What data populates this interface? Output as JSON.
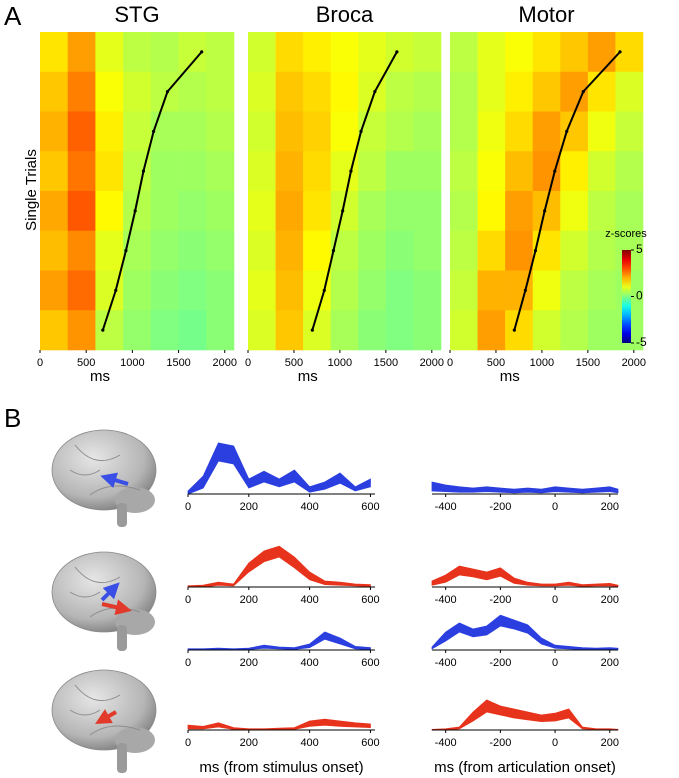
{
  "labels": [
    "A",
    "B"
  ],
  "chart_data": [
    {
      "type": "heatmap",
      "title": "STG",
      "ylabel": "Single Trials",
      "xlabel": "ms",
      "xlim": [
        0,
        2100
      ],
      "xticks": [
        0,
        500,
        1000,
        1500,
        2000
      ],
      "x_edges": [
        0,
        300,
        600,
        900,
        1200,
        1500,
        1800,
        2100
      ],
      "z": [
        [
          1.5,
          2.2,
          1.0,
          0.6,
          0.5,
          0.7,
          0.6
        ],
        [
          1.8,
          2.5,
          1.2,
          0.8,
          0.6,
          0.5,
          0.6
        ],
        [
          2.0,
          2.8,
          1.4,
          0.7,
          0.4,
          0.4,
          0.5
        ],
        [
          1.8,
          2.6,
          1.5,
          0.6,
          0.3,
          0.3,
          0.4
        ],
        [
          2.1,
          2.9,
          1.3,
          0.5,
          0.3,
          0.2,
          0.3
        ],
        [
          1.9,
          2.4,
          1.0,
          0.4,
          0.2,
          0.1,
          0.2
        ],
        [
          2.2,
          2.7,
          0.9,
          0.3,
          0.1,
          0.0,
          0.1
        ],
        [
          1.8,
          2.3,
          0.6,
          0.2,
          0.0,
          -0.1,
          0.1
        ]
      ],
      "rt": [
        1750,
        1380,
        1230,
        1120,
        1030,
        930,
        820,
        680
      ],
      "clim": [
        -5,
        5
      ]
    },
    {
      "type": "heatmap",
      "title": "Broca",
      "xlabel": "ms",
      "xlim": [
        0,
        2100
      ],
      "xticks": [
        0,
        500,
        1000,
        1500,
        2000
      ],
      "x_edges": [
        0,
        300,
        600,
        900,
        1200,
        1500,
        1800,
        2100
      ],
      "z": [
        [
          0.8,
          1.6,
          1.4,
          1.2,
          1.0,
          0.8,
          0.7
        ],
        [
          0.9,
          1.8,
          1.6,
          1.3,
          0.9,
          0.6,
          0.5
        ],
        [
          0.8,
          1.9,
          1.7,
          1.2,
          0.7,
          0.5,
          0.4
        ],
        [
          0.9,
          2.0,
          1.6,
          1.0,
          0.6,
          0.3,
          0.3
        ],
        [
          1.0,
          2.1,
          1.5,
          0.8,
          0.4,
          0.2,
          0.2
        ],
        [
          0.9,
          2.0,
          1.3,
          0.6,
          0.3,
          0.1,
          0.2
        ],
        [
          1.0,
          1.9,
          1.1,
          0.5,
          0.2,
          0.0,
          0.1
        ],
        [
          0.9,
          1.8,
          0.9,
          0.4,
          0.1,
          0.0,
          0.1
        ]
      ],
      "rt": [
        1620,
        1380,
        1230,
        1120,
        1030,
        930,
        830,
        700
      ],
      "clim": [
        -5,
        5
      ]
    },
    {
      "type": "heatmap",
      "title": "Motor",
      "xlabel": "ms",
      "xlim": [
        0,
        2100
      ],
      "xticks": [
        0,
        500,
        1000,
        1500,
        2000
      ],
      "x_edges": [
        0,
        300,
        600,
        900,
        1200,
        1500,
        1800,
        2100
      ],
      "z": [
        [
          0.6,
          1.0,
          1.2,
          1.5,
          1.8,
          2.2,
          1.6
        ],
        [
          0.5,
          1.0,
          1.4,
          1.8,
          2.2,
          1.5,
          0.9
        ],
        [
          0.5,
          1.1,
          1.6,
          2.2,
          1.8,
          1.1,
          0.7
        ],
        [
          0.6,
          1.2,
          1.9,
          2.3,
          1.4,
          0.8,
          0.5
        ],
        [
          0.5,
          1.3,
          2.2,
          1.9,
          1.1,
          0.6,
          0.4
        ],
        [
          0.6,
          1.6,
          2.3,
          1.5,
          0.8,
          0.5,
          0.4
        ],
        [
          0.7,
          2.0,
          2.0,
          1.1,
          0.6,
          0.4,
          0.3
        ],
        [
          0.8,
          2.2,
          1.6,
          0.8,
          0.5,
          0.3,
          0.3
        ]
      ],
      "rt": [
        1850,
        1450,
        1270,
        1140,
        1030,
        930,
        820,
        700
      ],
      "clim": [
        -5,
        5
      ],
      "colorbar": {
        "label": "z-scores",
        "ticks": [
          5,
          0,
          -5
        ]
      }
    },
    {
      "type": "band",
      "xlim": [
        0,
        615
      ],
      "ylim": [
        0,
        1
      ],
      "xticks": [
        0,
        200,
        400,
        600
      ],
      "x": [
        0,
        50,
        100,
        150,
        200,
        250,
        300,
        350,
        400,
        450,
        500,
        550,
        600
      ],
      "series": [
        {
          "color": "#2b3fe0",
          "values": [
            0.05,
            0.3,
            0.85,
            0.8,
            0.25,
            0.38,
            0.25,
            0.4,
            0.12,
            0.2,
            0.35,
            0.12,
            0.25
          ],
          "lower": [
            0,
            0.1,
            0.55,
            0.5,
            0.1,
            0.2,
            0.12,
            0.2,
            0.03,
            0.08,
            0.18,
            0.05,
            0.12
          ]
        }
      ]
    },
    {
      "type": "band",
      "xlim": [
        -450,
        230
      ],
      "ylim": [
        0,
        1
      ],
      "xticks": [
        -400,
        -200,
        0,
        200
      ],
      "x": [
        -450,
        -400,
        -350,
        -300,
        -250,
        -200,
        -150,
        -100,
        -50,
        0,
        50,
        100,
        150,
        200,
        230
      ],
      "series": [
        {
          "color": "#2b3fe0",
          "values": [
            0.2,
            0.15,
            0.12,
            0.1,
            0.12,
            0.1,
            0.08,
            0.1,
            0.08,
            0.12,
            0.1,
            0.08,
            0.1,
            0.12,
            0.08
          ],
          "lower": [
            0.05,
            0.04,
            0.03,
            0.03,
            0.04,
            0.03,
            0.02,
            0.03,
            0.02,
            0.04,
            0.03,
            0.02,
            0.03,
            0.04,
            0.02
          ]
        }
      ]
    },
    {
      "type": "band",
      "xlim": [
        0,
        615
      ],
      "ylim": [
        0,
        1
      ],
      "xticks": [
        0,
        200,
        400,
        600
      ],
      "x": [
        0,
        50,
        100,
        150,
        200,
        250,
        300,
        350,
        400,
        450,
        500,
        550,
        600
      ],
      "series": [
        {
          "color": "#e8331c",
          "values": [
            0.02,
            0.03,
            0.08,
            0.05,
            0.4,
            0.6,
            0.68,
            0.5,
            0.25,
            0.1,
            0.08,
            0.05,
            0.04
          ],
          "lower": [
            0,
            0,
            0.03,
            0.02,
            0.25,
            0.42,
            0.5,
            0.32,
            0.12,
            0.04,
            0.03,
            0.02,
            0.01
          ]
        }
      ]
    },
    {
      "type": "band",
      "xlim": [
        -450,
        230
      ],
      "ylim": [
        0,
        1
      ],
      "xticks": [
        -400,
        -200,
        0,
        200
      ],
      "x": [
        -450,
        -400,
        -350,
        -300,
        -250,
        -200,
        -150,
        -100,
        -50,
        0,
        50,
        100,
        150,
        200,
        230
      ],
      "series": [
        {
          "color": "#e8331c",
          "values": [
            0.1,
            0.2,
            0.35,
            0.3,
            0.25,
            0.32,
            0.15,
            0.08,
            0.05,
            0.05,
            0.08,
            0.04,
            0.05,
            0.06,
            0.03
          ],
          "lower": [
            0.03,
            0.08,
            0.2,
            0.17,
            0.12,
            0.18,
            0.06,
            0.03,
            0.02,
            0.02,
            0.03,
            0.01,
            0.02,
            0.02,
            0.01
          ]
        }
      ]
    },
    {
      "type": "band",
      "xlim": [
        0,
        615
      ],
      "ylim": [
        0,
        1
      ],
      "xticks": [
        0,
        200,
        400,
        600
      ],
      "x": [
        0,
        50,
        100,
        150,
        200,
        250,
        300,
        350,
        400,
        450,
        500,
        550,
        600
      ],
      "series": [
        {
          "color": "#2b3fe0",
          "values": [
            0.02,
            0.02,
            0.03,
            0.02,
            0.03,
            0.08,
            0.05,
            0.04,
            0.1,
            0.3,
            0.2,
            0.06,
            0.04
          ],
          "lower": [
            0,
            0,
            0.01,
            0,
            0.01,
            0.03,
            0.02,
            0.01,
            0.04,
            0.18,
            0.1,
            0.02,
            0.01
          ]
        }
      ]
    },
    {
      "type": "band",
      "xlim": [
        -450,
        230
      ],
      "ylim": [
        0,
        1
      ],
      "xticks": [
        -400,
        -200,
        0,
        200
      ],
      "x": [
        -450,
        -400,
        -350,
        -300,
        -250,
        -200,
        -150,
        -100,
        -50,
        0,
        50,
        100,
        150,
        200,
        230
      ],
      "series": [
        {
          "color": "#2b3fe0",
          "values": [
            0.05,
            0.3,
            0.45,
            0.35,
            0.4,
            0.58,
            0.5,
            0.42,
            0.2,
            0.08,
            0.06,
            0.04,
            0.03,
            0.04,
            0.03
          ],
          "lower": [
            0.02,
            0.15,
            0.3,
            0.22,
            0.25,
            0.4,
            0.35,
            0.28,
            0.1,
            0.03,
            0.02,
            0.01,
            0.01,
            0.01,
            0.01
          ]
        }
      ]
    },
    {
      "type": "band",
      "xlim": [
        0,
        615
      ],
      "ylim": [
        0,
        1
      ],
      "xticks": [
        0,
        200,
        400,
        600
      ],
      "xlabel": "ms (from stimulus onset)",
      "x": [
        0,
        50,
        100,
        150,
        200,
        250,
        300,
        350,
        400,
        450,
        500,
        550,
        600
      ],
      "series": [
        {
          "color": "#e8331c",
          "values": [
            0.08,
            0.06,
            0.12,
            0.04,
            0.02,
            0.02,
            0.03,
            0.04,
            0.15,
            0.18,
            0.15,
            0.12,
            0.1
          ],
          "lower": [
            0.02,
            0.02,
            0.05,
            0.01,
            0,
            0,
            0.01,
            0.01,
            0.06,
            0.08,
            0.06,
            0.05,
            0.04
          ]
        }
      ]
    },
    {
      "type": "band",
      "xlim": [
        -450,
        230
      ],
      "ylim": [
        0,
        1
      ],
      "xticks": [
        -400,
        -200,
        0,
        200
      ],
      "xlabel": "ms (from articulation onset)",
      "x": [
        -450,
        -400,
        -350,
        -300,
        -250,
        -200,
        -150,
        -100,
        -50,
        0,
        50,
        100,
        150,
        200,
        230
      ],
      "series": [
        {
          "color": "#e8331c",
          "values": [
            0.01,
            0.02,
            0.05,
            0.3,
            0.5,
            0.4,
            0.35,
            0.3,
            0.25,
            0.28,
            0.35,
            0.05,
            0.02,
            0.02,
            0.01
          ],
          "lower": [
            0,
            0,
            0.02,
            0.15,
            0.3,
            0.25,
            0.2,
            0.17,
            0.14,
            0.15,
            0.2,
            0.02,
            0.01,
            0,
            0
          ]
        }
      ]
    }
  ]
}
